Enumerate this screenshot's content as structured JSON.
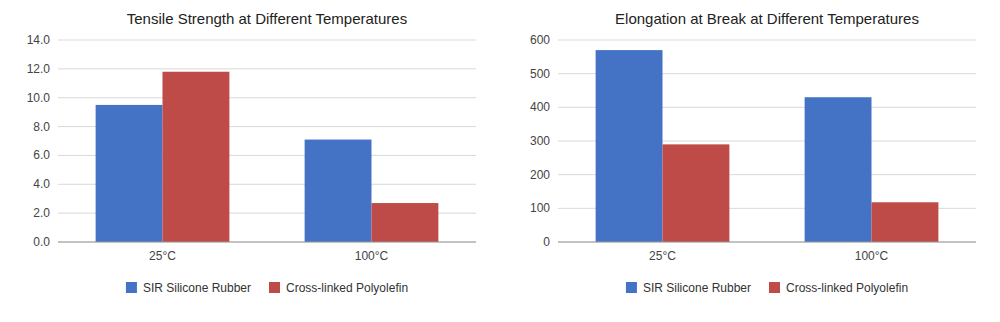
{
  "chart_data": [
    {
      "type": "bar",
      "title": "Tensile Strength at Different Temperatures",
      "categories": [
        "25°C",
        "100°C"
      ],
      "series": [
        {
          "name": "SIR Silicone Rubber",
          "color": "#4472C4",
          "values": [
            9.5,
            7.1
          ]
        },
        {
          "name": "Cross-linked Polyolefin",
          "color": "#BE4B48",
          "values": [
            11.8,
            2.7
          ]
        }
      ],
      "ylim": [
        0,
        14.0
      ],
      "yticks": [
        {
          "value": 0.0,
          "label": "0.0"
        },
        {
          "value": 2.0,
          "label": "2.0"
        },
        {
          "value": 4.0,
          "label": "4.0"
        },
        {
          "value": 6.0,
          "label": "6.0"
        },
        {
          "value": 8.0,
          "label": "8.0"
        },
        {
          "value": 10.0,
          "label": "10.0"
        },
        {
          "value": 12.0,
          "label": "12.0"
        },
        {
          "value": 14.0,
          "label": "14.0"
        }
      ],
      "grid": true,
      "legend": "bottom"
    },
    {
      "type": "bar",
      "title": "Elongation at Break at Different Temperatures",
      "categories": [
        "25°C",
        "100°C"
      ],
      "series": [
        {
          "name": "SIR Silicone Rubber",
          "color": "#4472C4",
          "values": [
            570,
            430
          ]
        },
        {
          "name": "Cross-linked Polyolefin",
          "color": "#BE4B48",
          "values": [
            290,
            118
          ]
        }
      ],
      "ylim": [
        0,
        600
      ],
      "yticks": [
        0,
        100,
        200,
        300,
        400,
        500,
        600
      ],
      "grid": true,
      "legend": "bottom"
    }
  ]
}
